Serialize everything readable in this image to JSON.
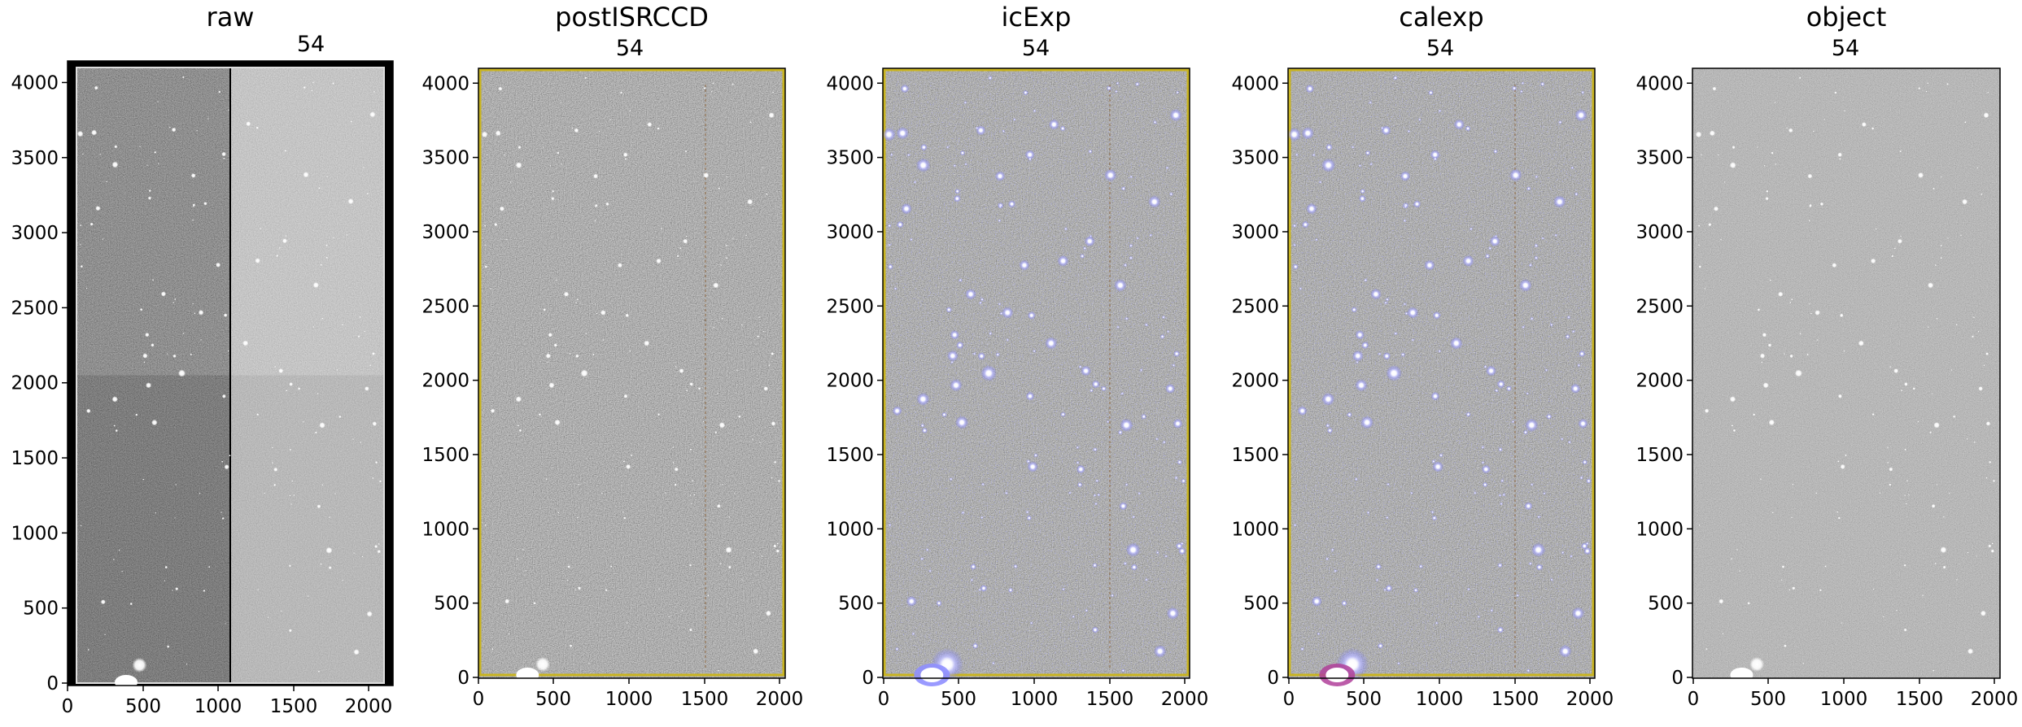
{
  "figure": {
    "panels": [
      {
        "title": "raw",
        "ccd_label": "54",
        "overlay": "none",
        "x_ticks": [
          "0",
          "500",
          "1000",
          "1500",
          "2000"
        ],
        "y_ticks": [
          "0",
          "500",
          "1000",
          "1500",
          "2000",
          "2500",
          "3000",
          "3500",
          "4000"
        ]
      },
      {
        "title": "postISRCCD",
        "ccd_label": "54",
        "overlay": "yellow border",
        "x_ticks": [
          "0",
          "500",
          "1000",
          "1500",
          "2000"
        ],
        "y_ticks": [
          "0",
          "500",
          "1000",
          "1500",
          "2000",
          "2500",
          "3000",
          "3500",
          "4000"
        ]
      },
      {
        "title": "icExp",
        "ccd_label": "54",
        "overlay": "blue detection mask",
        "x_ticks": [
          "0",
          "500",
          "1000",
          "1500",
          "2000"
        ],
        "y_ticks": [
          "0",
          "500",
          "1000",
          "1500",
          "2000",
          "2500",
          "3000",
          "3500",
          "4000"
        ]
      },
      {
        "title": "calexp",
        "ccd_label": "54",
        "overlay": "blue detection mask",
        "x_ticks": [
          "0",
          "500",
          "1000",
          "1500",
          "2000"
        ],
        "y_ticks": [
          "0",
          "500",
          "1000",
          "1500",
          "2000",
          "2500",
          "3000",
          "3500",
          "4000"
        ]
      },
      {
        "title": "object",
        "ccd_label": "54",
        "overlay": "none",
        "x_ticks": [
          "0",
          "500",
          "1000",
          "1500",
          "2000"
        ],
        "y_ticks": [
          "0",
          "500",
          "1000",
          "1500",
          "2000",
          "2500",
          "3000",
          "3500",
          "4000"
        ]
      }
    ],
    "colors": {
      "overlay_border": "#c9b420",
      "mask_blue": "#6a6cff",
      "mask_magenta": "#b0409a"
    }
  }
}
